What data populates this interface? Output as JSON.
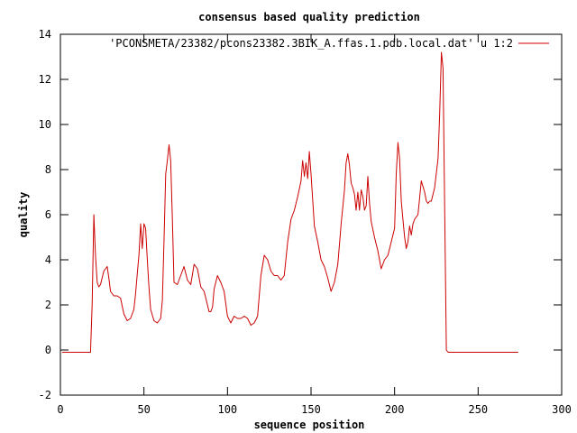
{
  "chart_data": {
    "type": "line",
    "title": "consensus based quality prediction",
    "xlabel": "sequence position",
    "ylabel": "quality",
    "xlim": [
      0,
      300
    ],
    "ylim": [
      -2,
      14
    ],
    "xticks": [
      0,
      50,
      100,
      150,
      200,
      250,
      300
    ],
    "yticks": [
      -2,
      0,
      2,
      4,
      6,
      8,
      10,
      12,
      14
    ],
    "grid": false,
    "legend_position": "top-right",
    "series": [
      {
        "name": "'PCONSMETA/23382/pcons23382.3BIK_A.ffas.1.pdb.local.dat' u 1:2",
        "color": "#cc0000",
        "x": [
          1,
          5,
          10,
          15,
          18,
          19,
          20,
          21,
          22,
          23,
          24,
          25,
          26,
          27,
          28,
          29,
          30,
          32,
          34,
          36,
          38,
          40,
          42,
          44,
          45,
          46,
          47,
          48,
          49,
          50,
          51,
          52,
          53,
          54,
          56,
          58,
          60,
          61,
          62,
          63,
          64,
          65,
          66,
          67,
          68,
          70,
          72,
          74,
          76,
          78,
          80,
          82,
          84,
          86,
          88,
          89,
          90,
          91,
          92,
          94,
          96,
          98,
          100,
          102,
          104,
          106,
          108,
          110,
          112,
          114,
          116,
          118,
          120,
          122,
          124,
          126,
          128,
          130,
          132,
          134,
          136,
          138,
          140,
          142,
          144,
          145,
          146,
          147,
          148,
          149,
          150,
          152,
          154,
          156,
          158,
          160,
          162,
          164,
          166,
          168,
          170,
          171,
          172,
          173,
          174,
          175,
          176,
          177,
          178,
          179,
          180,
          181,
          182,
          183,
          184,
          185,
          186,
          188,
          190,
          192,
          194,
          196,
          198,
          200,
          201,
          202,
          203,
          204,
          205,
          206,
          207,
          208,
          209,
          210,
          211,
          212,
          214,
          216,
          218,
          219,
          220,
          221,
          222,
          224,
          226,
          227,
          228,
          229,
          230,
          231,
          232,
          240,
          260,
          274
        ],
        "y": [
          -0.1,
          -0.1,
          -0.1,
          -0.1,
          -0.1,
          2.0,
          6.0,
          4.2,
          3.0,
          2.8,
          2.9,
          3.2,
          3.5,
          3.6,
          3.7,
          3.2,
          2.6,
          2.4,
          2.4,
          2.3,
          1.6,
          1.3,
          1.4,
          1.8,
          2.5,
          3.4,
          4.2,
          5.6,
          4.5,
          5.6,
          5.4,
          4.0,
          2.8,
          1.8,
          1.3,
          1.2,
          1.4,
          2.2,
          4.8,
          7.8,
          8.4,
          9.1,
          8.4,
          5.8,
          3.0,
          2.9,
          3.3,
          3.7,
          3.1,
          2.9,
          3.8,
          3.6,
          2.8,
          2.6,
          2.0,
          1.7,
          1.7,
          1.9,
          2.7,
          3.3,
          3.0,
          2.6,
          1.5,
          1.2,
          1.5,
          1.4,
          1.4,
          1.5,
          1.4,
          1.1,
          1.2,
          1.5,
          3.3,
          4.2,
          4.0,
          3.5,
          3.3,
          3.3,
          3.1,
          3.3,
          4.8,
          5.8,
          6.2,
          6.8,
          7.5,
          8.4,
          7.7,
          8.3,
          7.6,
          8.8,
          7.8,
          5.5,
          4.8,
          4.0,
          3.7,
          3.2,
          2.6,
          3.0,
          3.8,
          5.6,
          7.1,
          8.3,
          8.7,
          8.2,
          7.4,
          7.2,
          6.9,
          6.2,
          7.0,
          6.2,
          7.1,
          6.8,
          6.2,
          6.4,
          7.7,
          6.5,
          5.7,
          5.0,
          4.4,
          3.6,
          4.0,
          4.2,
          4.8,
          5.4,
          7.8,
          9.2,
          8.5,
          6.6,
          5.8,
          5.0,
          4.5,
          4.8,
          5.5,
          5.1,
          5.6,
          5.8,
          6.0,
          7.5,
          7.0,
          6.6,
          6.5,
          6.6,
          6.6,
          7.2,
          8.5,
          10.5,
          13.2,
          12.5,
          6.0,
          0.0,
          -0.1,
          -0.1,
          -0.1,
          -0.1
        ]
      }
    ]
  }
}
